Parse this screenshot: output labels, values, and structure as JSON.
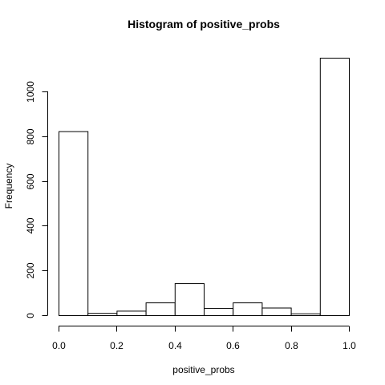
{
  "chart_data": {
    "type": "bar",
    "title": "Histogram of positive_probs",
    "xlabel": "positive_probs",
    "ylabel": "Frequency",
    "bin_edges": [
      0.0,
      0.1,
      0.2,
      0.3,
      0.4,
      0.5,
      0.6,
      0.7,
      0.8,
      0.9,
      1.0
    ],
    "values": [
      822,
      10,
      20,
      57,
      143,
      32,
      57,
      34,
      8,
      1150
    ],
    "xlim": [
      0.0,
      1.0
    ],
    "ylim": [
      0,
      1150
    ],
    "x_ticks": [
      0.0,
      0.2,
      0.4,
      0.6,
      0.8,
      1.0
    ],
    "x_tick_labels": [
      "0.0",
      "0.2",
      "0.4",
      "0.6",
      "0.8",
      "1.0"
    ],
    "y_ticks": [
      0,
      200,
      400,
      600,
      800,
      1000
    ],
    "y_tick_labels": [
      "0",
      "200",
      "400",
      "600",
      "800",
      "1000"
    ],
    "grid": false,
    "colors": {
      "bar_fill": "#ffffff",
      "bar_stroke": "#000000",
      "background": "#ffffff"
    }
  }
}
